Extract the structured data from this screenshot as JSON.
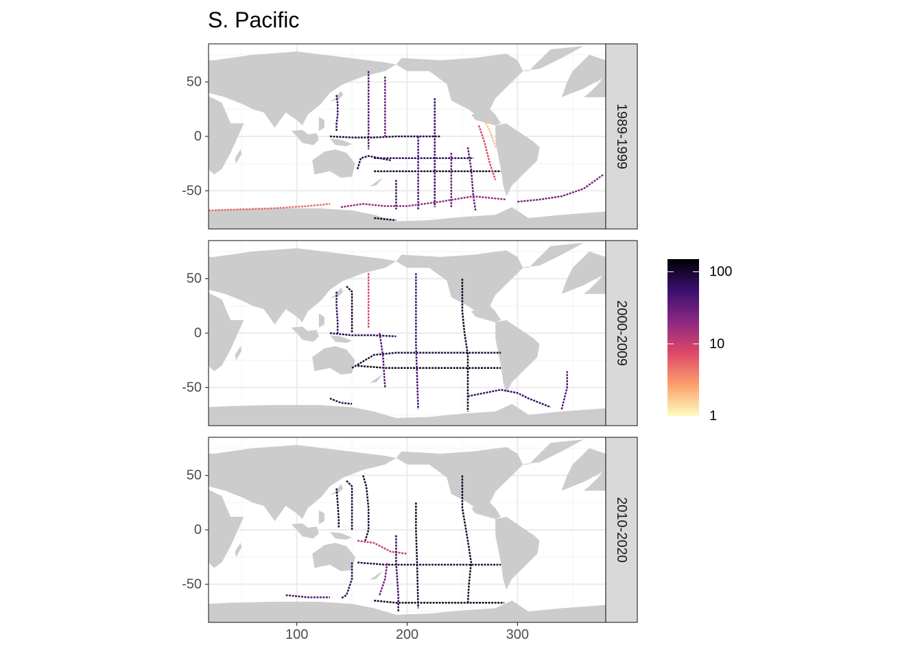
{
  "chart_data": {
    "type": "heatmap",
    "title": "S. Pacific",
    "xlabel": "",
    "ylabel": "",
    "xlim": [
      20,
      380
    ],
    "ylim": [
      -85,
      85
    ],
    "x_ticks": [
      100,
      200,
      300
    ],
    "y_ticks": [
      50,
      0,
      -50
    ],
    "grid": true,
    "facets": [
      "1989-1999",
      "2000-2009",
      "2010-2020"
    ],
    "legend": {
      "position": "right",
      "scale": "log10",
      "range": [
        1,
        150
      ],
      "breaks": [
        1,
        10,
        100
      ],
      "break_labels": [
        "1",
        "10",
        "100"
      ],
      "colors": [
        "#fcfdbf",
        "#fd9f6c",
        "#de4968",
        "#8c2981",
        "#3b0f70",
        "#000004"
      ]
    },
    "colors": {
      "land": "#cccccc",
      "panel_background": "#ffffff",
      "grid_major": "#ebebeb",
      "strip_background": "#d9d9d9",
      "panel_border": "#333333"
    },
    "transects": [
      [
        {
          "path": [
            [
              136,
              38
            ],
            [
              137,
              30
            ],
            [
              137,
              20
            ],
            [
              136,
              12
            ],
            [
              136,
              5
            ]
          ],
          "value": 60
        },
        {
          "path": [
            [
              155,
              -30
            ],
            [
              158,
              -20
            ],
            [
              165,
              -18
            ],
            [
              175,
              -20
            ],
            [
              185,
              -22
            ]
          ],
          "value": 80
        },
        {
          "path": [
            [
              165,
              60
            ],
            [
              165,
              40
            ],
            [
              165,
              20
            ],
            [
              165,
              0
            ],
            [
              165,
              -12
            ]
          ],
          "value": 40
        },
        {
          "path": [
            [
              180,
              55
            ],
            [
              180,
              35
            ],
            [
              180,
              15
            ],
            [
              180,
              0
            ]
          ],
          "value": 30
        },
        {
          "path": [
            [
              130,
              0
            ],
            [
              150,
              -1
            ],
            [
              170,
              -1
            ],
            [
              190,
              0
            ],
            [
              210,
              0
            ],
            [
              230,
              0
            ]
          ],
          "value": 90
        },
        {
          "path": [
            [
              170,
              -20
            ],
            [
              180,
              -20
            ],
            [
              200,
              -20
            ],
            [
              220,
              -20
            ],
            [
              250,
              -20
            ],
            [
              260,
              -20
            ]
          ],
          "value": 70
        },
        {
          "path": [
            [
              170,
              -32
            ],
            [
              190,
              -32
            ],
            [
              210,
              -32
            ],
            [
              230,
              -32
            ],
            [
              260,
              -32
            ],
            [
              285,
              -32
            ]
          ],
          "value": 110
        },
        {
          "path": [
            [
              190,
              -40
            ],
            [
              190,
              -60
            ],
            [
              190,
              -67
            ]
          ],
          "value": 50
        },
        {
          "path": [
            [
              210,
              0
            ],
            [
              210,
              -30
            ],
            [
              210,
              -60
            ],
            [
              210,
              -67
            ]
          ],
          "value": 45
        },
        {
          "path": [
            [
              225,
              35
            ],
            [
              225,
              10
            ],
            [
              225,
              -15
            ],
            [
              225,
              -40
            ],
            [
              225,
              -65
            ]
          ],
          "value": 60
        },
        {
          "path": [
            [
              240,
              -15
            ],
            [
              240,
              -35
            ],
            [
              240,
              -65
            ]
          ],
          "value": 30
        },
        {
          "path": [
            [
              255,
              -10
            ],
            [
              258,
              -30
            ],
            [
              260,
              -55
            ],
            [
              262,
              -68
            ]
          ],
          "value": 35
        },
        {
          "path": [
            [
              265,
              10
            ],
            [
              270,
              -5
            ],
            [
              275,
              -25
            ],
            [
              280,
              -40
            ]
          ],
          "value": 8
        },
        {
          "path": [
            [
              140,
              -65
            ],
            [
              160,
              -62
            ],
            [
              180,
              -64
            ],
            [
              200,
              -64
            ],
            [
              230,
              -60
            ],
            [
              260,
              -55
            ],
            [
              290,
              -58
            ]
          ],
          "value": 18
        },
        {
          "path": [
            [
              20,
              -68
            ],
            [
              50,
              -67
            ],
            [
              80,
              -66
            ],
            [
              110,
              -64
            ],
            [
              130,
              -62
            ]
          ],
          "value": 5
        },
        {
          "path": [
            [
              300,
              -60
            ],
            [
              320,
              -58
            ],
            [
              340,
              -55
            ],
            [
              360,
              -48
            ],
            [
              378,
              -35
            ]
          ],
          "value": 25
        },
        {
          "path": [
            [
              170,
              -75
            ],
            [
              180,
              -76
            ],
            [
              190,
              -77
            ]
          ],
          "value": 100
        },
        {
          "path": [
            [
              270,
              15
            ],
            [
              275,
              5
            ],
            [
              280,
              -10
            ]
          ],
          "value": 2
        }
      ],
      [
        {
          "path": [
            [
              136,
              38
            ],
            [
              136,
              25
            ],
            [
              137,
              10
            ],
            [
              137,
              0
            ]
          ],
          "value": 60
        },
        {
          "path": [
            [
              145,
              43
            ],
            [
              150,
              38
            ],
            [
              150,
              25
            ],
            [
              150,
              0
            ]
          ],
          "value": 100
        },
        {
          "path": [
            [
              165,
              55
            ],
            [
              165,
              30
            ],
            [
              165,
              5
            ]
          ],
          "value": 8
        },
        {
          "path": [
            [
              130,
              0
            ],
            [
              150,
              -2
            ],
            [
              170,
              -2
            ],
            [
              190,
              -3
            ]
          ],
          "value": 70
        },
        {
          "path": [
            [
              150,
              -32
            ],
            [
              170,
              -20
            ],
            [
              190,
              -18
            ],
            [
              220,
              -18
            ],
            [
              250,
              -18
            ],
            [
              285,
              -18
            ]
          ],
          "value": 90
        },
        {
          "path": [
            [
              155,
              -30
            ],
            [
              180,
              -32
            ],
            [
              210,
              -32
            ],
            [
              240,
              -32
            ],
            [
              270,
              -32
            ],
            [
              285,
              -32
            ]
          ],
          "value": 120
        },
        {
          "path": [
            [
              175,
              0
            ],
            [
              178,
              -20
            ],
            [
              180,
              -50
            ]
          ],
          "value": 40
        },
        {
          "path": [
            [
              208,
              55
            ],
            [
              208,
              20
            ],
            [
              208,
              -10
            ],
            [
              209,
              -40
            ],
            [
              210,
              -70
            ]
          ],
          "value": 50
        },
        {
          "path": [
            [
              250,
              50
            ],
            [
              250,
              20
            ],
            [
              252,
              0
            ],
            [
              255,
              -20
            ],
            [
              255,
              -50
            ],
            [
              255,
              -72
            ]
          ],
          "value": 110
        },
        {
          "path": [
            [
              255,
              -58
            ],
            [
              270,
              -55
            ],
            [
              285,
              -52
            ],
            [
              300,
              -55
            ],
            [
              310,
              -60
            ],
            [
              330,
              -68
            ]
          ],
          "value": 60
        },
        {
          "path": [
            [
              340,
              -70
            ],
            [
              345,
              -50
            ],
            [
              345,
              -35
            ]
          ],
          "value": 40
        },
        {
          "path": [
            [
              130,
              -60
            ],
            [
              140,
              -64
            ],
            [
              150,
              -65
            ]
          ],
          "value": 70
        }
      ],
      [
        {
          "path": [
            [
              136,
              38
            ],
            [
              137,
              25
            ],
            [
              138,
              10
            ],
            [
              138,
              2
            ]
          ],
          "value": 100
        },
        {
          "path": [
            [
              145,
              45
            ],
            [
              150,
              40
            ],
            [
              150,
              25
            ],
            [
              150,
              0
            ]
          ],
          "value": 90
        },
        {
          "path": [
            [
              160,
              50
            ],
            [
              163,
              40
            ],
            [
              165,
              20
            ],
            [
              165,
              0
            ],
            [
              162,
              -10
            ]
          ],
          "value": 100
        },
        {
          "path": [
            [
              155,
              -10
            ],
            [
              170,
              -12
            ],
            [
              185,
              -20
            ],
            [
              200,
              -22
            ]
          ],
          "value": 10
        },
        {
          "path": [
            [
              155,
              -30
            ],
            [
              180,
              -32
            ],
            [
              210,
              -32
            ],
            [
              240,
              -32
            ],
            [
              270,
              -32
            ],
            [
              285,
              -32
            ]
          ],
          "value": 80
        },
        {
          "path": [
            [
              190,
              -5
            ],
            [
              190,
              -30
            ],
            [
              192,
              -60
            ],
            [
              192,
              -75
            ]
          ],
          "value": 60
        },
        {
          "path": [
            [
              208,
              25
            ],
            [
              208,
              0
            ],
            [
              209,
              -30
            ],
            [
              210,
              -72
            ]
          ],
          "value": 110
        },
        {
          "path": [
            [
              250,
              50
            ],
            [
              250,
              20
            ],
            [
              255,
              -10
            ],
            [
              258,
              -30
            ],
            [
              256,
              -50
            ],
            [
              255,
              -68
            ]
          ],
          "value": 110
        },
        {
          "path": [
            [
              170,
              -65
            ],
            [
              190,
              -67
            ],
            [
              210,
              -67
            ],
            [
              240,
              -67
            ],
            [
              270,
              -67
            ],
            [
              288,
              -67
            ]
          ],
          "value": 120
        },
        {
          "path": [
            [
              150,
              -30
            ],
            [
              150,
              -45
            ],
            [
              145,
              -60
            ],
            [
              140,
              -63
            ]
          ],
          "value": 70
        },
        {
          "path": [
            [
              90,
              -60
            ],
            [
              110,
              -62
            ],
            [
              130,
              -62
            ]
          ],
          "value": 40
        },
        {
          "path": [
            [
              175,
              -60
            ],
            [
              180,
              -45
            ],
            [
              182,
              -30
            ]
          ],
          "value": 30
        }
      ]
    ]
  }
}
